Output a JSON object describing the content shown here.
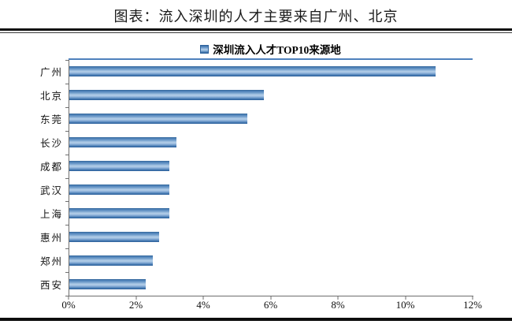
{
  "caption": "图表：流入深圳的人才主要来自广州、北京",
  "chart_data": {
    "type": "bar",
    "orientation": "horizontal",
    "title": "",
    "legend": "深圳流入人才TOP10来源地",
    "legend_position": "top-center",
    "categories": [
      "广州",
      "北京",
      "东莞",
      "长沙",
      "成都",
      "武汉",
      "上海",
      "惠州",
      "郑州",
      "西安"
    ],
    "values": [
      10.9,
      5.8,
      5.3,
      3.2,
      3.0,
      3.0,
      3.0,
      2.7,
      2.5,
      2.3
    ],
    "unit": "%",
    "xlabel": "",
    "ylabel": "",
    "xlim": [
      0,
      12
    ],
    "x_ticks": [
      "0%",
      "2%",
      "4%",
      "6%",
      "8%",
      "10%",
      "12%"
    ],
    "x_tick_values": [
      0,
      2,
      4,
      6,
      8,
      10,
      12
    ],
    "grid": false,
    "colors": {
      "bar_fill": "#4f81bd",
      "bar_edge": "#2d629c",
      "plot_top_border": "#4f81bd",
      "axis": "#6e6e6e",
      "rule": "#0d0d0d"
    }
  }
}
